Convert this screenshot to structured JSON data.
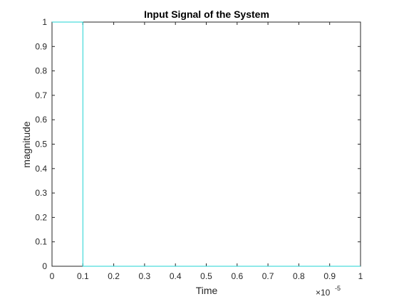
{
  "chart_data": {
    "type": "line",
    "title": "Input Signal of the System",
    "xlabel": "Time",
    "ylabel": "magnitude",
    "x_exponent_label": "×10",
    "x_exponent_power": "-5",
    "xlim": [
      0,
      1
    ],
    "ylim": [
      0,
      1
    ],
    "xticks": [
      0,
      0.1,
      0.2,
      0.3,
      0.4,
      0.5,
      0.6,
      0.7,
      0.8,
      0.9,
      1
    ],
    "xtick_labels": [
      "0",
      "0.1",
      "0.2",
      "0.3",
      "0.4",
      "0.5",
      "0.6",
      "0.7",
      "0.8",
      "0.9",
      "1"
    ],
    "yticks": [
      0,
      0.1,
      0.2,
      0.3,
      0.4,
      0.5,
      0.6,
      0.7,
      0.8,
      0.9,
      1
    ],
    "ytick_labels": [
      "0",
      "0.1",
      "0.2",
      "0.3",
      "0.4",
      "0.5",
      "0.6",
      "0.7",
      "0.8",
      "0.9",
      "1"
    ],
    "grid": false,
    "series": [
      {
        "color": "#1fd3d3",
        "x": [
          0,
          0.1,
          0.1,
          1
        ],
        "y": [
          1,
          1,
          0,
          0
        ]
      }
    ]
  }
}
